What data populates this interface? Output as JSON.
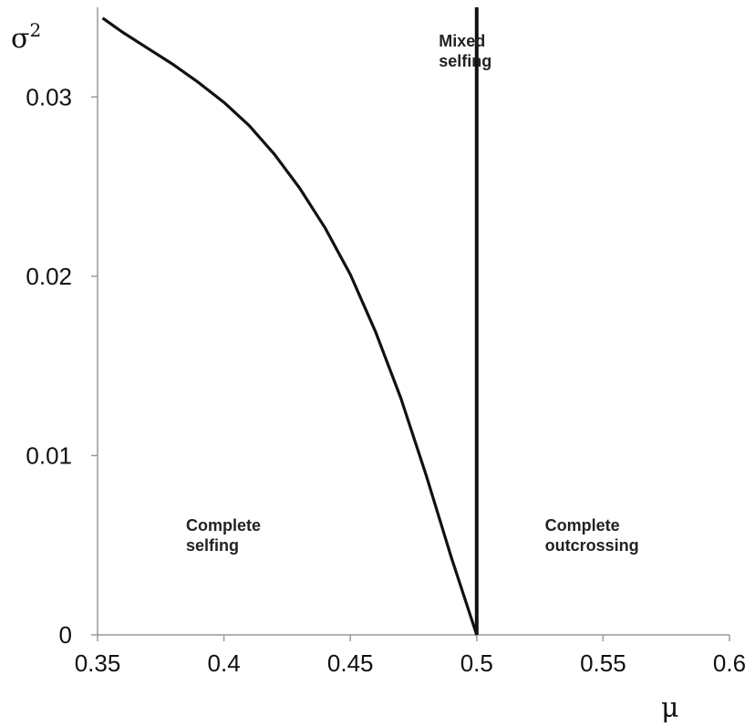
{
  "chart_data": {
    "type": "line",
    "xlabel": "μ",
    "ylabel": "σ",
    "ylabel_superscript": "2",
    "xlim": [
      0.35,
      0.6
    ],
    "ylim": [
      0,
      0.035
    ],
    "x_ticks": [
      "0.35",
      "0.4",
      "0.45",
      "0.5",
      "0.55",
      "0.6"
    ],
    "x_tick_values": [
      0.35,
      0.4,
      0.45,
      0.5,
      0.55,
      0.6
    ],
    "y_ticks": [
      "0",
      "0.01",
      "0.02",
      "0.03"
    ],
    "y_tick_values": [
      0,
      0.01,
      0.02,
      0.03
    ],
    "grid": false,
    "series": [
      {
        "values_x": [
          0.352,
          0.36,
          0.37,
          0.38,
          0.39,
          0.4,
          0.41,
          0.42,
          0.43,
          0.44,
          0.45,
          0.46,
          0.47,
          0.48,
          0.49,
          0.5
        ],
        "values_y": [
          0.0344,
          0.0336,
          0.0327,
          0.0318,
          0.0308,
          0.0297,
          0.0284,
          0.0268,
          0.0249,
          0.0227,
          0.0201,
          0.0169,
          0.0132,
          0.0089,
          0.0043,
          0.0
        ]
      },
      {
        "values_x": [
          0.5,
          0.5
        ],
        "values_y": [
          0.0,
          0.035
        ]
      }
    ],
    "annotations": [
      {
        "lines": [
          "Mixed",
          "selfing"
        ],
        "x": 0.485,
        "y": 0.0328
      },
      {
        "lines": [
          "Complete",
          "selfing"
        ],
        "x": 0.385,
        "y": 0.0058
      },
      {
        "lines": [
          "Complete",
          "outcrossing"
        ],
        "x": 0.527,
        "y": 0.0058
      }
    ]
  }
}
